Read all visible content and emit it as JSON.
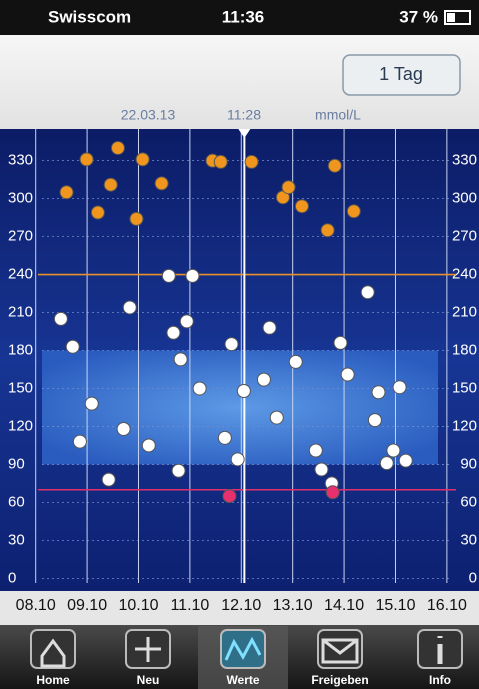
{
  "status_bar": {
    "carrier": "Swisscom",
    "time": "11:36",
    "battery": "37 %"
  },
  "toolbar": {
    "button": "1 Tag"
  },
  "chart_data": {
    "type": "scatter",
    "header": {
      "date": "22.03.13",
      "time": "11:28",
      "unit": "mmol/L"
    },
    "cursor_x": 12.06,
    "xlim": [
      7.5,
      16.45
    ],
    "xticks": [
      {
        "value": 8,
        "label": "08.10"
      },
      {
        "value": 9,
        "label": "09.10"
      },
      {
        "value": 10,
        "label": "10.10"
      },
      {
        "value": 11,
        "label": "11.10"
      },
      {
        "value": 12,
        "label": "12.10"
      },
      {
        "value": 13,
        "label": "13.10"
      },
      {
        "value": 14,
        "label": "14.10"
      },
      {
        "value": 15,
        "label": "15.10"
      },
      {
        "value": 16,
        "label": "16.10"
      }
    ],
    "ylim": [
      -10,
      355
    ],
    "yticks": [
      0,
      30,
      60,
      90,
      120,
      150,
      180,
      210,
      240,
      270,
      300,
      330
    ],
    "grid": true,
    "target_range": [
      90,
      180
    ],
    "limits": [
      {
        "value": 240,
        "color": "#e8902a"
      },
      {
        "value": 70,
        "color": "#e0306a"
      }
    ],
    "series": [
      {
        "color": "#f0961e",
        "x": [
          8.6,
          8.99,
          9.21,
          9.46,
          9.6,
          9.96,
          10.08,
          10.45,
          11.44,
          11.6,
          12.2,
          12.81,
          12.92,
          13.18,
          13.68,
          13.82,
          14.19
        ],
        "values": [
          305,
          331,
          289,
          311,
          340,
          284,
          331,
          312,
          330,
          329,
          329,
          301,
          309,
          294,
          275,
          326,
          290
        ]
      },
      {
        "color": "#ffffff",
        "x": [
          8.49,
          8.72,
          9.09,
          8.86,
          9.42,
          9.71,
          9.83,
          10.2,
          10.59,
          10.68,
          10.82,
          10.94,
          10.78,
          11.05,
          11.19,
          11.68,
          11.81,
          11.93,
          12.05,
          12.44,
          12.55,
          12.69,
          13.06,
          13.45,
          13.56,
          13.76,
          13.93,
          14.07,
          14.46,
          14.6,
          14.67,
          14.83,
          14.96,
          15.08,
          15.2
        ],
        "values": [
          205,
          183,
          138,
          108,
          78,
          118,
          214,
          105,
          239,
          194,
          173,
          203,
          85,
          239,
          150,
          111,
          185,
          94,
          148,
          157,
          198,
          127,
          171,
          101,
          86,
          75,
          186,
          161,
          226,
          125,
          147,
          91,
          101,
          151,
          93
        ]
      },
      {
        "color": "#e8306e",
        "x": [
          11.77,
          13.78
        ],
        "values": [
          65,
          68
        ]
      }
    ]
  },
  "tab_bar": {
    "tabs": [
      "Home",
      "Neu",
      "Werte",
      "Freigeben",
      "Info"
    ],
    "selected": 2
  }
}
